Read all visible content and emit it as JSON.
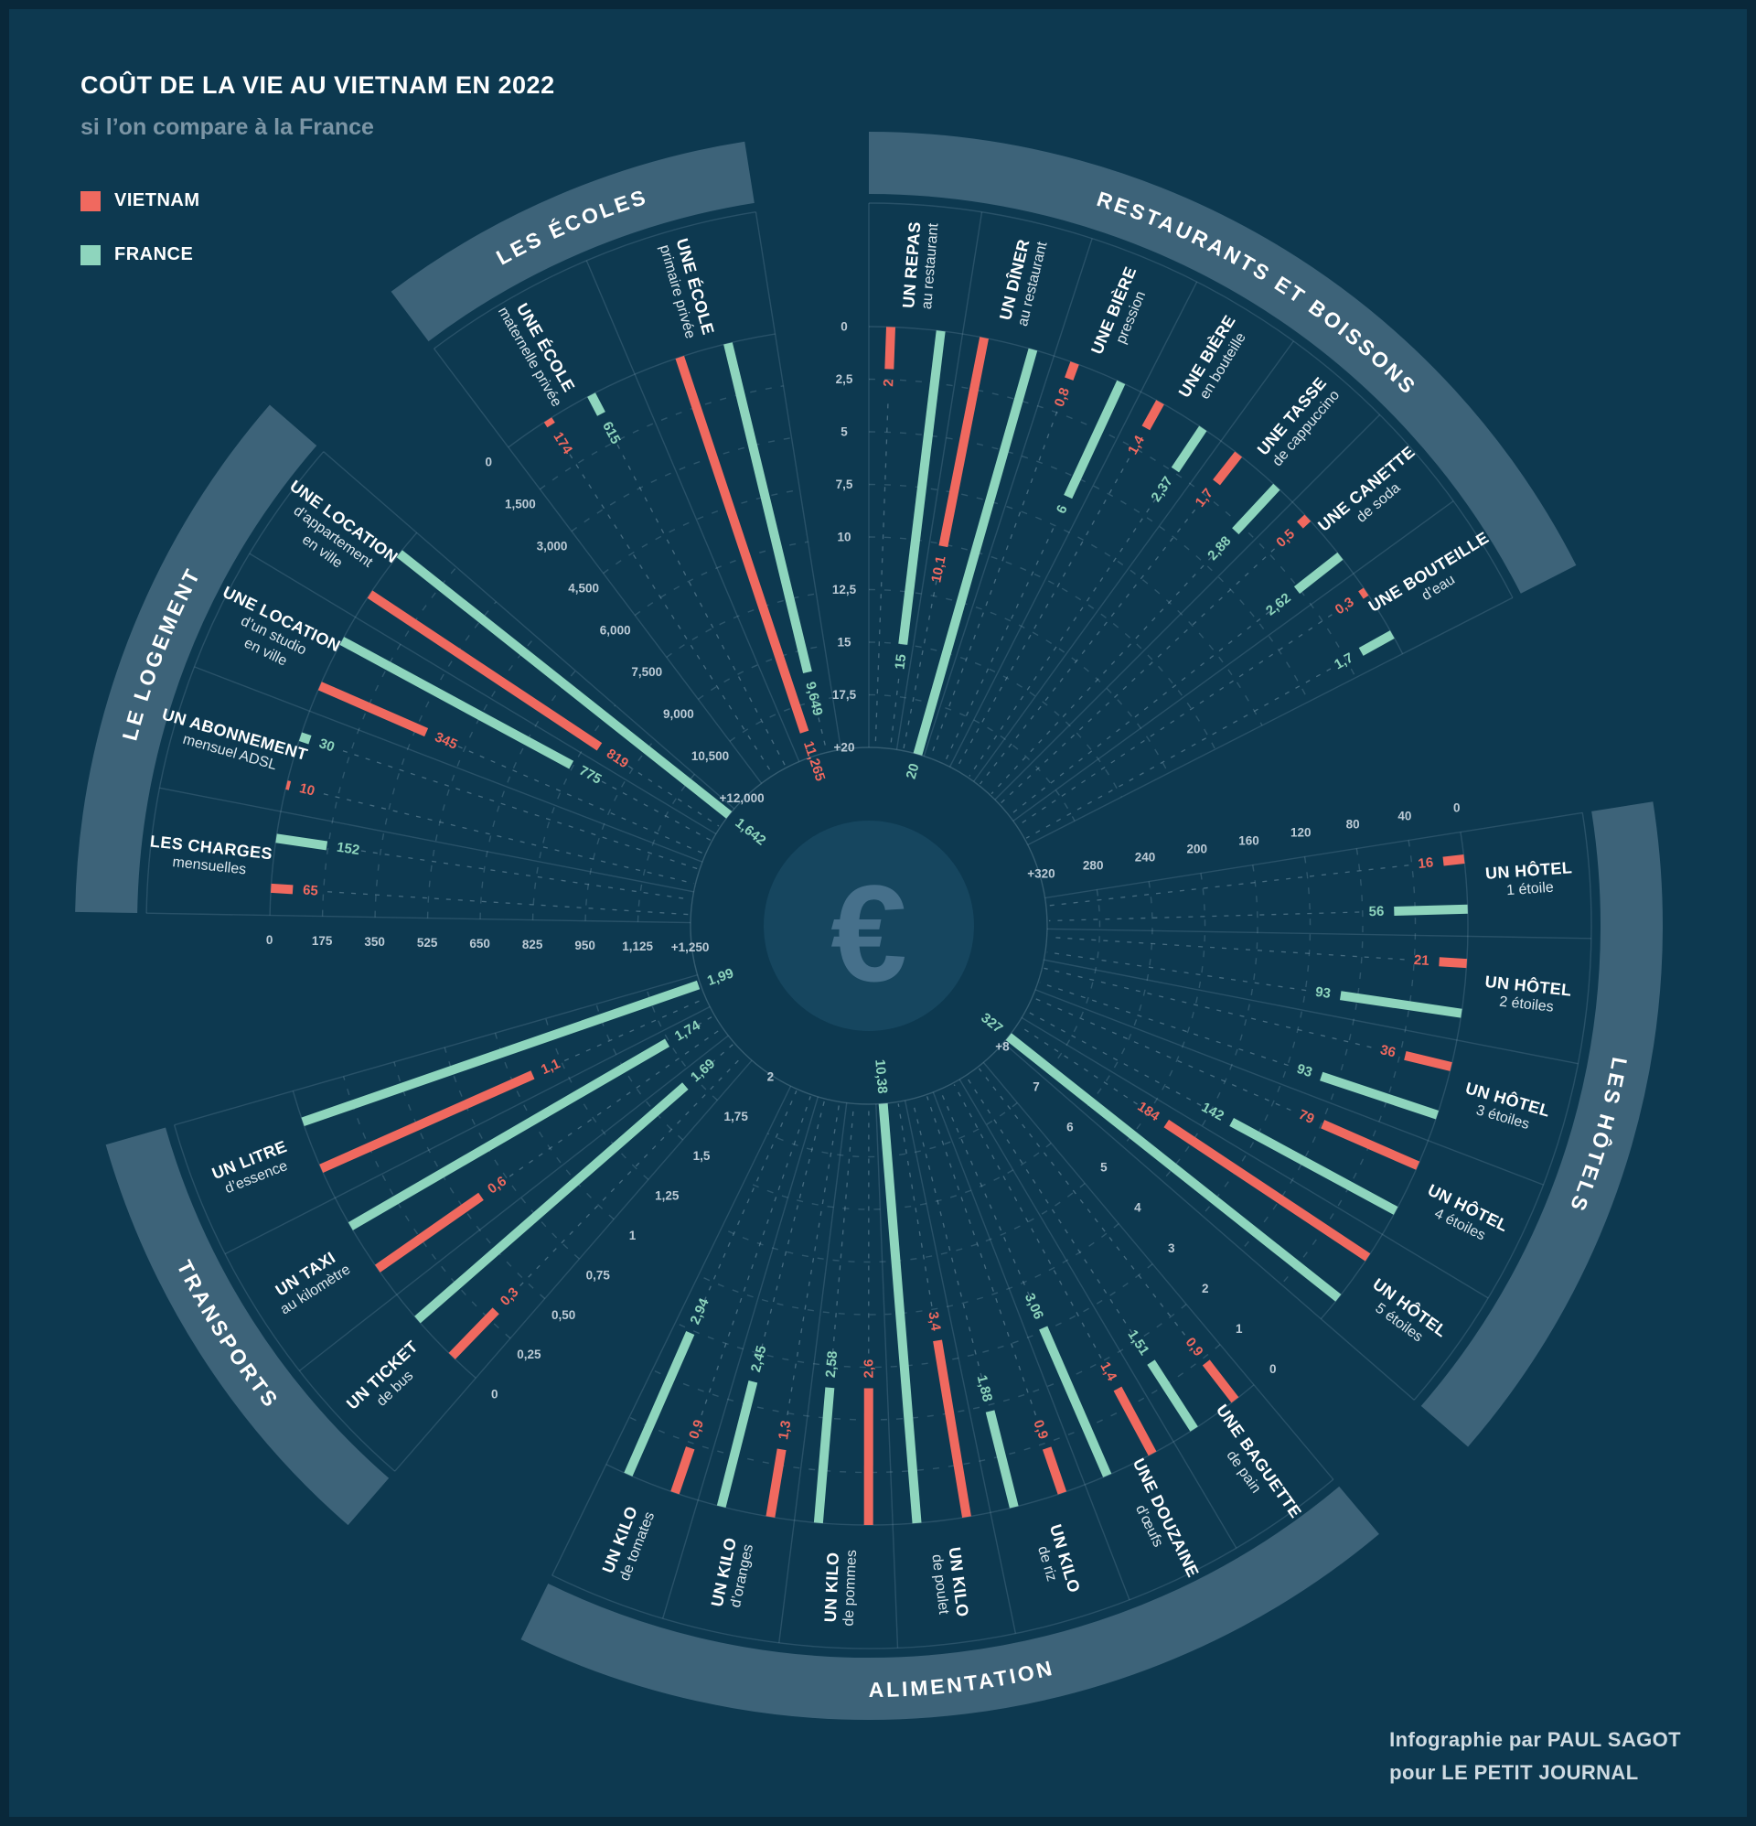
{
  "title": "COÛT DE LA VIE AU VIETNAM EN 2022",
  "subtitle": "si l’on compare à la France",
  "legend": {
    "items": [
      {
        "label": "VIETNAM",
        "color": "#f0695f"
      },
      {
        "label": "FRANCE",
        "color": "#8ed5bd"
      }
    ]
  },
  "credits": {
    "line1": "Infographie par PAUL SAGOT",
    "line2": "pour LE PETIT JOURNAL"
  },
  "colors": {
    "background": "#0d3950",
    "band": "#3d6379",
    "vietnam": "#f0695f",
    "france": "#8ed5bd"
  },
  "center_symbol": "€",
  "chart_data": {
    "type": "radial-bar",
    "unit": "EUR",
    "series_names": [
      "VIETNAM",
      "FRANCE"
    ],
    "sectors": [
      {
        "id": "ecoles",
        "title": "LES ÉCOLES",
        "max": 12000,
        "ticks": [
          "0",
          "1,500",
          "3,000",
          "4,500",
          "6,000",
          "7,500",
          "9,000",
          "10,500",
          "+12,000"
        ],
        "items": [
          {
            "name": "UNE ÉCOLE",
            "desc": "maternelle privée",
            "vietnam": 174,
            "france": 615,
            "vietnam_label": "174",
            "france_label": "615"
          },
          {
            "name": "UNE ÉCOLE",
            "desc": "primaire privée",
            "vietnam": 11265,
            "france": 9649,
            "vietnam_label": "11,265",
            "france_label": "9,649"
          }
        ]
      },
      {
        "id": "restaurants",
        "title": "RESTAURANTS ET BOISSONS",
        "max": 20,
        "ticks": [
          "0",
          "2,5",
          "5",
          "7,5",
          "10",
          "12,5",
          "15",
          "17,5",
          "+20"
        ],
        "items": [
          {
            "name": "UN REPAS",
            "desc": "au restaurant",
            "vietnam": 2,
            "france": 15,
            "vietnam_label": "2",
            "france_label": "15"
          },
          {
            "name": "UN DÎNER",
            "desc": "au restaurant",
            "vietnam": 10.1,
            "france": 20,
            "vietnam_label": "10,1",
            "france_label": "20"
          },
          {
            "name": "UNE BIÈRE",
            "desc": "pression",
            "vietnam": 0.8,
            "france": 6,
            "vietnam_label": "0,8",
            "france_label": "6"
          },
          {
            "name": "UNE BIÈRE",
            "desc": "en bouteille",
            "vietnam": 1.4,
            "france": 2.37,
            "vietnam_label": "1,4",
            "france_label": "2,37"
          },
          {
            "name": "UNE TASSE",
            "desc": "de cappuccino",
            "vietnam": 1.7,
            "france": 2.88,
            "vietnam_label": "1,7",
            "france_label": "2,88"
          },
          {
            "name": "UNE CANETTE",
            "desc": "de soda",
            "vietnam": 0.5,
            "france": 2.62,
            "vietnam_label": "0,5",
            "france_label": "2,62"
          },
          {
            "name": "UNE BOUTEILLE",
            "desc": "d’eau",
            "vietnam": 0.3,
            "france": 1.7,
            "vietnam_label": "0,3",
            "france_label": "1,7"
          }
        ]
      },
      {
        "id": "hotels",
        "title": "LES HÔTELS",
        "max": 320,
        "ticks": [
          "0",
          "40",
          "80",
          "120",
          "160",
          "200",
          "240",
          "280",
          "+320"
        ],
        "items": [
          {
            "name": "UN HÔTEL",
            "desc": "1 étoile",
            "vietnam": 16,
            "france": 56,
            "vietnam_label": "16",
            "france_label": "56"
          },
          {
            "name": "UN HÔTEL",
            "desc": "2 étoiles",
            "vietnam": 21,
            "france": 93,
            "vietnam_label": "21",
            "france_label": "93"
          },
          {
            "name": "UN HÔTEL",
            "desc": "3 étoiles",
            "vietnam": 36,
            "france": 93,
            "vietnam_label": "36",
            "france_label": "93"
          },
          {
            "name": "UN HÔTEL",
            "desc": "4 étoiles",
            "vietnam": 79,
            "france": 142,
            "vietnam_label": "79",
            "france_label": "142"
          },
          {
            "name": "UN HÔTEL",
            "desc": "5 étoiles",
            "vietnam": 184,
            "france": 327,
            "vietnam_label": "184",
            "france_label": "327"
          }
        ]
      },
      {
        "id": "alimentation",
        "title": "ALIMENTATION",
        "max": 8,
        "ticks": [
          "0",
          "1",
          "2",
          "3",
          "4",
          "5",
          "6",
          "7",
          "+8"
        ],
        "items": [
          {
            "name": "UN KILO",
            "desc": "de tomates",
            "vietnam": 0.9,
            "france": 2.94,
            "vietnam_label": "0,9",
            "france_label": "2,94"
          },
          {
            "name": "UN KILO",
            "desc": "d’oranges",
            "vietnam": 1.3,
            "france": 2.45,
            "vietnam_label": "1,3",
            "france_label": "2,45"
          },
          {
            "name": "UN KILO",
            "desc": "de pommes",
            "vietnam": 2.6,
            "france": 2.58,
            "vietnam_label": "2,6",
            "france_label": "2,58"
          },
          {
            "name": "UN KILO",
            "desc": "de poulet",
            "vietnam": 3.4,
            "france": 10.38,
            "vietnam_label": "3,4",
            "france_label": "10,38"
          },
          {
            "name": "UN KILO",
            "desc": "de riz",
            "vietnam": 0.9,
            "france": 1.88,
            "vietnam_label": "0,9",
            "france_label": "1,88"
          },
          {
            "name": "UNE DOUZAINE",
            "desc": "d’œufs",
            "vietnam": 1.4,
            "france": 3.06,
            "vietnam_label": "1,4",
            "france_label": "3,06"
          },
          {
            "name": "UNE BAGUETTE",
            "desc": "de pain",
            "vietnam": 0.9,
            "france": 1.51,
            "vietnam_label": "0,9",
            "france_label": "1,51"
          }
        ]
      },
      {
        "id": "transports",
        "title": "TRANSPORTS",
        "max": 2,
        "ticks": [
          "0",
          "0,25",
          "0,50",
          "0,75",
          "1",
          "1,25",
          "1,5",
          "1,75",
          "2"
        ],
        "items": [
          {
            "name": "UN LITRE",
            "desc": "d’essence",
            "vietnam": 1.1,
            "france": 1.99,
            "vietnam_label": "1,1",
            "france_label": "1,99"
          },
          {
            "name": "UN TAXI",
            "desc": "au kilomètre",
            "vietnam": 0.6,
            "france": 1.74,
            "vietnam_label": "0,6",
            "france_label": "1,74"
          },
          {
            "name": "UN TICKET",
            "desc": "de bus",
            "vietnam": 0.3,
            "france": 1.69,
            "vietnam_label": "0,3",
            "france_label": "1,69"
          }
        ]
      },
      {
        "id": "logement",
        "title": "LE LOGEMENT",
        "max": 1250,
        "ticks": [
          "0",
          "175",
          "350",
          "525",
          "650",
          "825",
          "950",
          "1,125",
          "+1,250"
        ],
        "items": [
          {
            "name": "UNE LOCATION",
            "desc": "d’appartement\nen ville",
            "vietnam": 819,
            "france": 1642,
            "vietnam_label": "819",
            "france_label": "1,642"
          },
          {
            "name": "UNE LOCATION",
            "desc": "d’un studio\nen ville",
            "vietnam": 345,
            "france": 775,
            "vietnam_label": "345",
            "france_label": "775"
          },
          {
            "name": "UN ABONNEMENT",
            "desc": "mensuel ADSL",
            "vietnam": 10,
            "france": 30,
            "vietnam_label": "10",
            "france_label": "30"
          },
          {
            "name": "LES CHARGES",
            "desc": "mensuelles",
            "vietnam": 65,
            "france": 152,
            "vietnam_label": "65",
            "france_label": "152"
          }
        ]
      }
    ]
  }
}
